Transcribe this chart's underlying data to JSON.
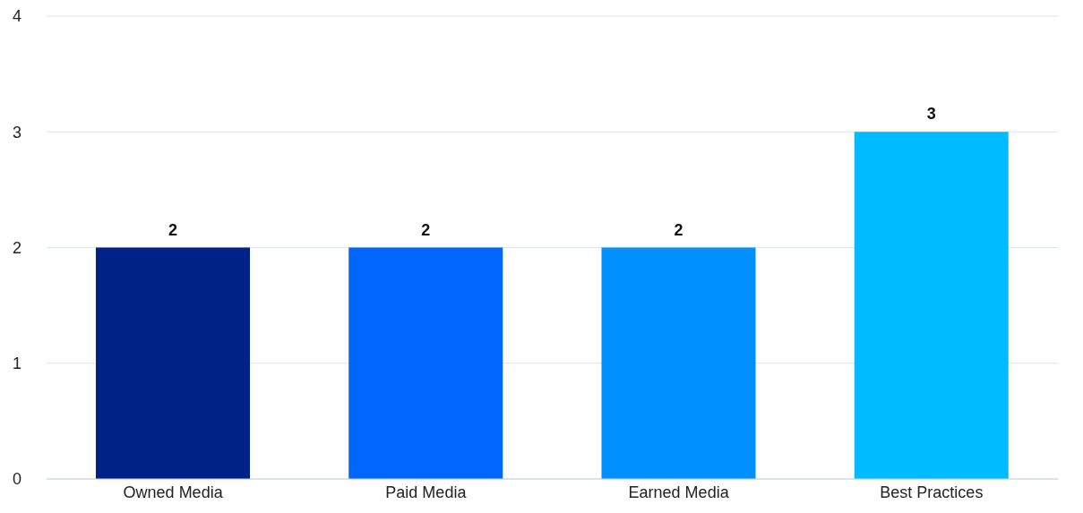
{
  "chart_data": {
    "type": "bar",
    "categories": [
      "Owned Media",
      "Paid Media",
      "Earned Media",
      "Best Practices"
    ],
    "values": [
      2,
      2,
      2,
      3
    ],
    "colors": [
      "#002288",
      "#0066ff",
      "#0090ff",
      "#00bbff"
    ],
    "ylim": [
      0,
      4
    ],
    "yticks": [
      0,
      1,
      2,
      3,
      4
    ],
    "grid": "y",
    "data_labels": true
  }
}
